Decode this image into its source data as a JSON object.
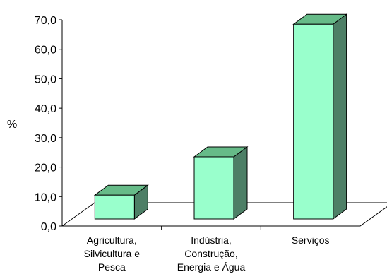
{
  "chart_data": {
    "type": "bar",
    "style": "3d",
    "title": "",
    "xlabel": "",
    "ylabel": "%",
    "ylim": [
      0,
      70
    ],
    "y_ticks": [
      "0,0",
      "10,0",
      "20,0",
      "30,0",
      "40,0",
      "50,0",
      "60,0",
      "70,0"
    ],
    "categories": [
      [
        "Agricultura,",
        "Silvicultura e",
        "Pesca"
      ],
      [
        "Indústria,",
        "Construção,",
        "Energia e Água"
      ],
      [
        "Serviços"
      ]
    ],
    "values": [
      10.5,
      23.5,
      68.5
    ],
    "grid": false,
    "legend": "none",
    "colors": {
      "bar_front": "#99ffcc",
      "bar_top": "#66bb88",
      "bar_side": "#4d7f66",
      "axis": "#000000"
    }
  }
}
